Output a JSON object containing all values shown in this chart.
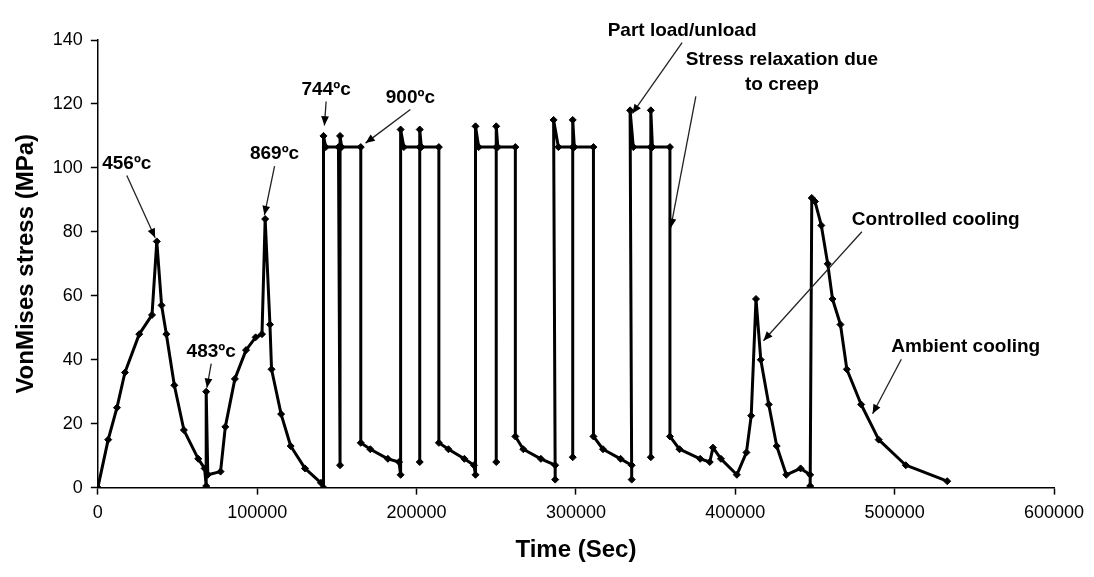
{
  "chart_data": {
    "type": "line",
    "xlabel": "Time (Sec)",
    "ylabel": "VonMises stress (MPa)",
    "xlim": [
      0,
      600000
    ],
    "xticks": [
      0,
      100000,
      200000,
      300000,
      400000,
      500000,
      600000
    ],
    "ylim": [
      0,
      140
    ],
    "yticks": [
      0,
      20,
      40,
      60,
      80,
      100,
      120,
      140
    ],
    "grid": false,
    "legend": false,
    "marker": "diamond",
    "line_style": "solid",
    "series": [
      {
        "color": "#000000",
        "x": [
          0,
          6500,
          12000,
          17000,
          26000,
          34000,
          37000,
          40000,
          43000,
          48000,
          54000,
          63000,
          67000,
          68000,
          68000,
          69000,
          77000,
          80000,
          86000,
          93000,
          99000,
          103000,
          105000,
          108000,
          109000,
          115000,
          121000,
          130000,
          140000,
          141600,
          141600,
          143000,
          151000,
          152000,
          152000,
          153000,
          165000,
          165000,
          171000,
          182000,
          189000,
          190000,
          190000,
          192000,
          202000,
          202000,
          202000,
          203000,
          214000,
          214000,
          220000,
          230000,
          236000,
          237000,
          237000,
          239000,
          250000,
          250000,
          250000,
          251000,
          262000,
          262000,
          267000,
          278000,
          287000,
          287000,
          286000,
          289000,
          298000,
          298000,
          298000,
          299000,
          311000,
          311000,
          317000,
          328000,
          335000,
          335000,
          334000,
          336000,
          347000,
          347000,
          347000,
          348000,
          359000,
          359000,
          365000,
          378000,
          384000,
          386000,
          391000,
          401000,
          407000,
          410000,
          413000,
          416000,
          421000,
          426000,
          432000,
          441000,
          447000,
          447000,
          448000,
          450000,
          454000,
          458000,
          461000,
          466000,
          470000,
          479000,
          490000,
          507000,
          533000
        ],
        "values": [
          0,
          15,
          25,
          36,
          48,
          54,
          77,
          57,
          48,
          32,
          18,
          9,
          6,
          0.5,
          30,
          4,
          5,
          19,
          34,
          43,
          47,
          48,
          84,
          51,
          37,
          23,
          13,
          6,
          1.5,
          0,
          110,
          106.5,
          106.5,
          7,
          110,
          106.5,
          106.5,
          14,
          12,
          9,
          8,
          4,
          112,
          106.5,
          106.5,
          8,
          112,
          106.5,
          106.5,
          14,
          12,
          9,
          7,
          4,
          113,
          106.5,
          106.5,
          8,
          113,
          106.5,
          106.5,
          16,
          12,
          9,
          7,
          2.5,
          115,
          106.5,
          106.5,
          9.5,
          115,
          106.5,
          106.5,
          16,
          12,
          9,
          7,
          2.5,
          118,
          106.5,
          106.5,
          9.5,
          118,
          106.5,
          106.5,
          16,
          12,
          9,
          8,
          12.5,
          9,
          4,
          11,
          22.5,
          59,
          40,
          26,
          13,
          4,
          6,
          4,
          0.5,
          90.6,
          89.5,
          82,
          70,
          59,
          51,
          37,
          26,
          15,
          7,
          2
        ]
      }
    ],
    "annotations": [
      {
        "text": "456ºc",
        "x": 37000,
        "y": 77
      },
      {
        "text": "483ºc",
        "x": 68000,
        "y": 30
      },
      {
        "text": "869ºc",
        "x": 104000,
        "y": 84
      },
      {
        "text": "744ºc",
        "x": 142000,
        "y": 112
      },
      {
        "text": "900ºc",
        "x": 166000,
        "y": 107
      },
      {
        "text": "Part load/unload",
        "x": 334000,
        "y": 116
      },
      {
        "text": "Stress relaxation due to creep",
        "x": 359000,
        "y": 80
      },
      {
        "text": "Controlled cooling",
        "x": 416000,
        "y": 45
      },
      {
        "text": "Ambient cooling",
        "x": 485000,
        "y": 22
      }
    ]
  }
}
